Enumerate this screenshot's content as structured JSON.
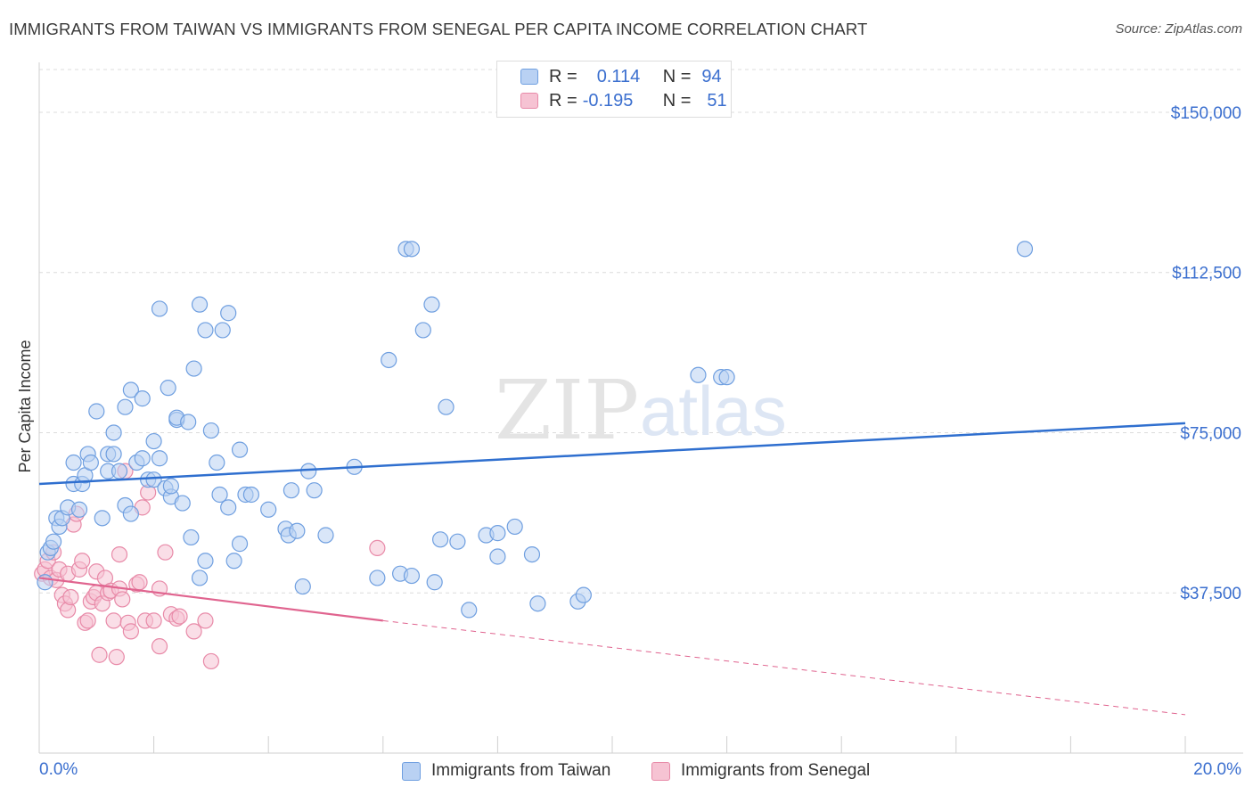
{
  "title": "IMMIGRANTS FROM TAIWAN VS IMMIGRANTS FROM SENEGAL PER CAPITA INCOME CORRELATION CHART",
  "source": "Source: ZipAtlas.com",
  "watermark": {
    "zip": "ZIP",
    "atlas": "atlas"
  },
  "legend": {
    "rows": [
      {
        "r_label": "R =",
        "r_value": "0.114",
        "n_label": "N =",
        "n_value": "94"
      },
      {
        "r_label": "R =",
        "r_value": "-0.195",
        "n_label": "N =",
        "n_value": "51"
      }
    ]
  },
  "bottom_legend": [
    "Immigrants from Taiwan",
    "Immigrants from Senegal"
  ],
  "colors": {
    "taiwan": "#6f9fe0",
    "taiwan_fill": "#b9d1f3",
    "taiwan_line": "#2f6fcf",
    "senegal": "#e88aa8",
    "senegal_fill": "#f6c3d3",
    "senegal_line": "#e0648f",
    "axis_label": "#3b6fcf"
  },
  "chart_data": {
    "type": "scatter",
    "xlabel": "",
    "ylabel": "Per Capita Income",
    "xlim": [
      0,
      20
    ],
    "ylim": [
      0,
      160000
    ],
    "x_tick_labels": [
      "0.0%",
      "20.0%"
    ],
    "y_ticks": [
      37500,
      75000,
      112500,
      150000
    ],
    "y_tick_labels": [
      "$37,500",
      "$75,000",
      "$112,500",
      "$150,000"
    ],
    "series": [
      {
        "name": "Immigrants from Taiwan",
        "r": 0.114,
        "n": 94,
        "trend": {
          "x": [
            0,
            20
          ],
          "y": [
            63000,
            77200
          ]
        },
        "points": [
          [
            0.1,
            40000
          ],
          [
            0.15,
            47000
          ],
          [
            0.2,
            48000
          ],
          [
            0.25,
            49500
          ],
          [
            0.3,
            55000
          ],
          [
            0.35,
            53000
          ],
          [
            0.4,
            55000
          ],
          [
            0.5,
            57500
          ],
          [
            0.6,
            63000
          ],
          [
            0.6,
            68000
          ],
          [
            0.7,
            57000
          ],
          [
            0.75,
            63000
          ],
          [
            0.8,
            65000
          ],
          [
            0.85,
            70000
          ],
          [
            0.9,
            68000
          ],
          [
            1.0,
            80000
          ],
          [
            1.1,
            55000
          ],
          [
            1.2,
            66000
          ],
          [
            1.2,
            70000
          ],
          [
            1.3,
            75000
          ],
          [
            1.3,
            70000
          ],
          [
            1.4,
            66000
          ],
          [
            1.5,
            58000
          ],
          [
            1.5,
            81000
          ],
          [
            1.6,
            56000
          ],
          [
            1.6,
            85000
          ],
          [
            1.7,
            68000
          ],
          [
            1.8,
            69000
          ],
          [
            1.8,
            83000
          ],
          [
            1.9,
            64000
          ],
          [
            2.0,
            73000
          ],
          [
            2.0,
            64000
          ],
          [
            2.1,
            69000
          ],
          [
            2.1,
            104000
          ],
          [
            2.2,
            62000
          ],
          [
            2.25,
            85500
          ],
          [
            2.3,
            60000
          ],
          [
            2.3,
            62500
          ],
          [
            2.4,
            78000
          ],
          [
            2.4,
            78500
          ],
          [
            2.5,
            58500
          ],
          [
            2.6,
            77500
          ],
          [
            2.65,
            50500
          ],
          [
            2.7,
            90000
          ],
          [
            2.8,
            41000
          ],
          [
            2.8,
            105000
          ],
          [
            2.9,
            99000
          ],
          [
            2.9,
            45000
          ],
          [
            3.0,
            75500
          ],
          [
            3.1,
            68000
          ],
          [
            3.15,
            60500
          ],
          [
            3.2,
            99000
          ],
          [
            3.3,
            103000
          ],
          [
            3.3,
            57500
          ],
          [
            3.4,
            45000
          ],
          [
            3.5,
            49000
          ],
          [
            3.5,
            71000
          ],
          [
            3.6,
            60500
          ],
          [
            3.7,
            60500
          ],
          [
            4.0,
            57000
          ],
          [
            4.3,
            52500
          ],
          [
            4.35,
            51000
          ],
          [
            4.4,
            61500
          ],
          [
            4.5,
            52000
          ],
          [
            4.6,
            39000
          ],
          [
            4.7,
            66000
          ],
          [
            4.8,
            61500
          ],
          [
            5.0,
            51000
          ],
          [
            5.5,
            67000
          ],
          [
            5.9,
            41000
          ],
          [
            6.1,
            92000
          ],
          [
            6.3,
            42000
          ],
          [
            6.4,
            118000
          ],
          [
            6.5,
            118000
          ],
          [
            6.5,
            41500
          ],
          [
            6.7,
            99000
          ],
          [
            6.85,
            105000
          ],
          [
            6.9,
            40000
          ],
          [
            7.0,
            50000
          ],
          [
            7.1,
            81000
          ],
          [
            7.3,
            49500
          ],
          [
            7.5,
            33500
          ],
          [
            7.8,
            51000
          ],
          [
            8.0,
            46000
          ],
          [
            8.0,
            51500
          ],
          [
            8.3,
            53000
          ],
          [
            8.6,
            46500
          ],
          [
            8.7,
            35000
          ],
          [
            9.4,
            35500
          ],
          [
            9.5,
            37000
          ],
          [
            11.5,
            88500
          ],
          [
            11.9,
            88000
          ],
          [
            12.0,
            88000
          ],
          [
            17.2,
            118000
          ]
        ]
      },
      {
        "name": "Immigrants from Senegal",
        "r": -0.195,
        "n": 51,
        "trend": {
          "x": [
            0,
            6
          ],
          "y": [
            41000,
            31000
          ]
        },
        "trend_dashed": {
          "x": [
            6,
            20
          ],
          "y": [
            31000,
            9000
          ]
        },
        "points": [
          [
            0.05,
            42000
          ],
          [
            0.1,
            43000
          ],
          [
            0.15,
            45000
          ],
          [
            0.2,
            41000
          ],
          [
            0.25,
            47000
          ],
          [
            0.3,
            40500
          ],
          [
            0.35,
            43000
          ],
          [
            0.4,
            37000
          ],
          [
            0.45,
            35000
          ],
          [
            0.5,
            33500
          ],
          [
            0.5,
            42000
          ],
          [
            0.55,
            36500
          ],
          [
            0.6,
            53500
          ],
          [
            0.65,
            56000
          ],
          [
            0.7,
            43000
          ],
          [
            0.75,
            45000
          ],
          [
            0.8,
            30500
          ],
          [
            0.85,
            31000
          ],
          [
            0.9,
            35500
          ],
          [
            0.95,
            36500
          ],
          [
            1.0,
            37500
          ],
          [
            1.0,
            42500
          ],
          [
            1.05,
            23000
          ],
          [
            1.1,
            35000
          ],
          [
            1.15,
            41000
          ],
          [
            1.2,
            37500
          ],
          [
            1.25,
            38000
          ],
          [
            1.3,
            31000
          ],
          [
            1.35,
            22500
          ],
          [
            1.4,
            38500
          ],
          [
            1.4,
            46500
          ],
          [
            1.45,
            36000
          ],
          [
            1.5,
            66000
          ],
          [
            1.55,
            30500
          ],
          [
            1.6,
            28500
          ],
          [
            1.7,
            39500
          ],
          [
            1.75,
            40000
          ],
          [
            1.8,
            57500
          ],
          [
            1.85,
            31000
          ],
          [
            1.9,
            61000
          ],
          [
            2.0,
            31000
          ],
          [
            2.1,
            25000
          ],
          [
            2.1,
            38500
          ],
          [
            2.2,
            47000
          ],
          [
            2.3,
            32500
          ],
          [
            2.4,
            31500
          ],
          [
            2.45,
            32000
          ],
          [
            2.7,
            28500
          ],
          [
            2.9,
            31000
          ],
          [
            3.0,
            21500
          ],
          [
            5.9,
            48000
          ]
        ]
      }
    ]
  }
}
